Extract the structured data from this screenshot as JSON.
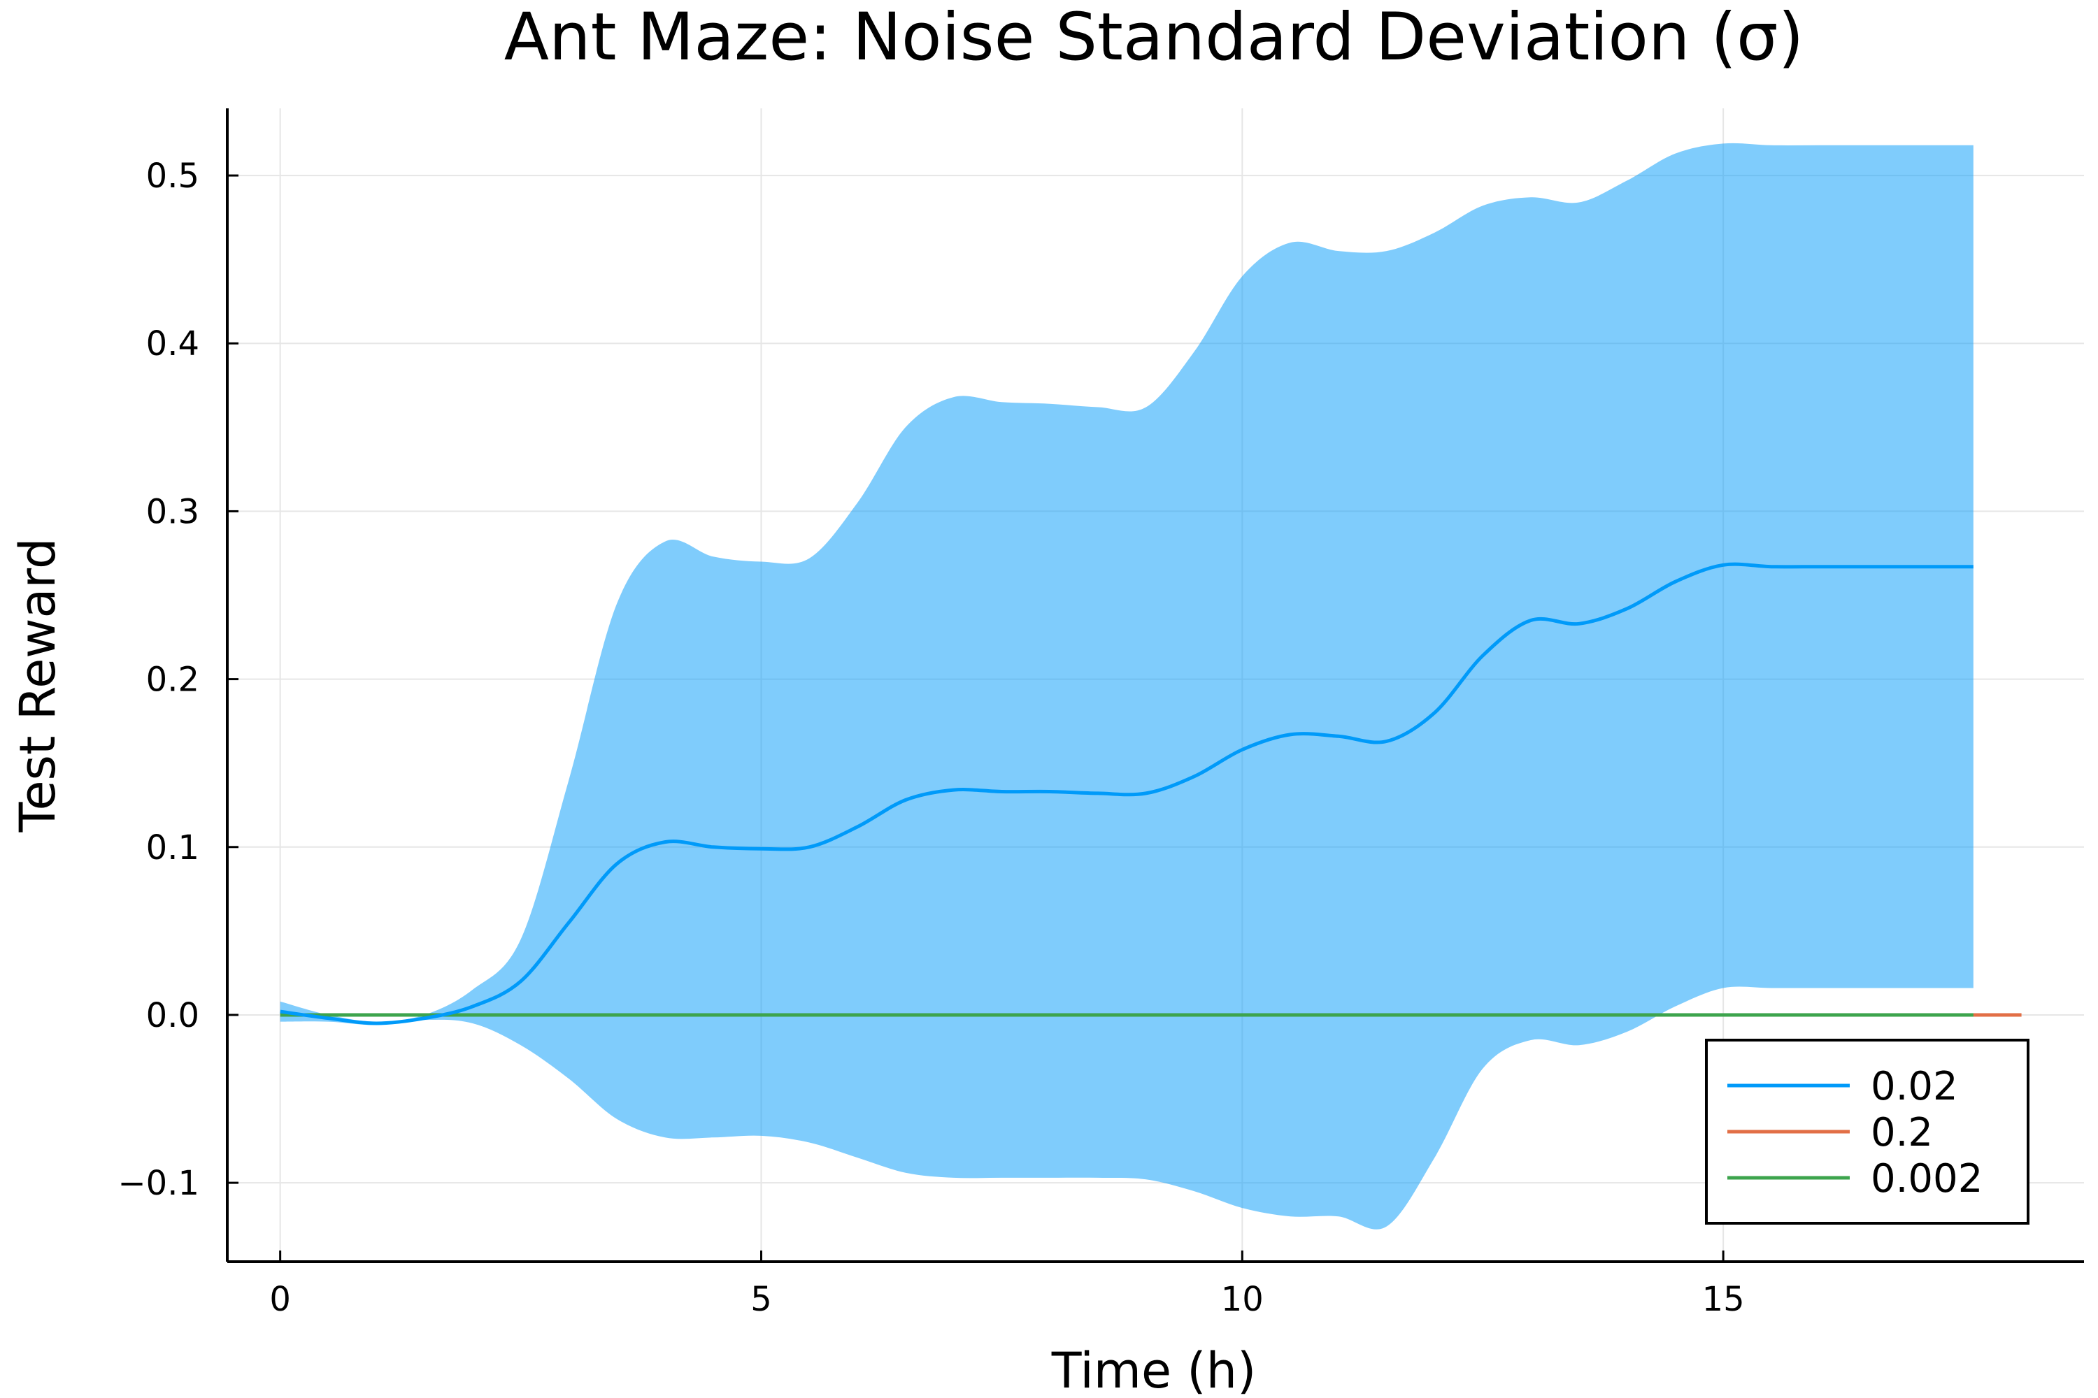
{
  "chart_data": {
    "type": "line",
    "title": "Ant Maze: Noise Standard Deviation (σ)",
    "xlabel": "Time (h)",
    "ylabel": "Test Reward",
    "xlim": [
      -0.55,
      18.75
    ],
    "ylim": [
      -0.147,
      0.54
    ],
    "xticks": [
      0,
      5,
      10,
      15
    ],
    "xtick_labels": [
      "0",
      "5",
      "10",
      "15"
    ],
    "yticks": [
      -0.1,
      0.0,
      0.1,
      0.2,
      0.3,
      0.4,
      0.5
    ],
    "ytick_labels": [
      "−0.1",
      "0.0",
      "0.1",
      "0.2",
      "0.3",
      "0.4",
      "0.5"
    ],
    "grid": true,
    "legend_position": "bottom-right",
    "series": [
      {
        "name": "0.02",
        "color": "#009af9",
        "band_color": "#009af9",
        "band_opacity": 0.5,
        "x": [
          0,
          0.5,
          1.0,
          1.5,
          2.0,
          2.5,
          3.0,
          3.5,
          4.0,
          4.5,
          5.0,
          5.5,
          6.0,
          6.5,
          7.0,
          7.5,
          8.0,
          8.5,
          9.0,
          9.5,
          10.0,
          10.5,
          11.0,
          11.5,
          12.0,
          12.5,
          13.0,
          13.5,
          14.0,
          14.5,
          15.0,
          15.5,
          16.0,
          16.5,
          17.0,
          17.6
        ],
        "mean": [
          0.002,
          -0.002,
          -0.005,
          -0.002,
          0.005,
          0.02,
          0.055,
          0.09,
          0.103,
          0.1,
          0.099,
          0.1,
          0.112,
          0.128,
          0.134,
          0.133,
          0.133,
          0.132,
          0.132,
          0.142,
          0.158,
          0.167,
          0.166,
          0.163,
          0.18,
          0.214,
          0.235,
          0.233,
          0.242,
          0.258,
          0.268,
          0.267,
          0.267,
          0.267,
          0.267,
          0.267
        ],
        "upper": [
          0.008,
          0.0,
          -0.004,
          0.0,
          0.015,
          0.045,
          0.14,
          0.245,
          0.282,
          0.273,
          0.27,
          0.272,
          0.305,
          0.35,
          0.368,
          0.365,
          0.364,
          0.362,
          0.362,
          0.395,
          0.44,
          0.46,
          0.455,
          0.455,
          0.466,
          0.482,
          0.487,
          0.484,
          0.497,
          0.513,
          0.519,
          0.518,
          0.518,
          0.518,
          0.518,
          0.518
        ],
        "lower": [
          -0.004,
          -0.004,
          -0.006,
          -0.003,
          -0.005,
          -0.018,
          -0.038,
          -0.062,
          -0.073,
          -0.073,
          -0.072,
          -0.076,
          -0.085,
          -0.094,
          -0.097,
          -0.097,
          -0.097,
          -0.097,
          -0.098,
          -0.105,
          -0.115,
          -0.12,
          -0.12,
          -0.126,
          -0.085,
          -0.032,
          -0.015,
          -0.018,
          -0.01,
          0.005,
          0.016,
          0.016,
          0.016,
          0.016,
          0.016,
          0.016
        ]
      },
      {
        "name": "0.2",
        "color": "#e26f46",
        "x": [
          0,
          18.1
        ],
        "mean": [
          0.0,
          0.0
        ]
      },
      {
        "name": "0.002",
        "color": "#3da44d",
        "x": [
          0,
          17.6
        ],
        "mean": [
          0.0,
          0.0
        ]
      }
    ]
  }
}
